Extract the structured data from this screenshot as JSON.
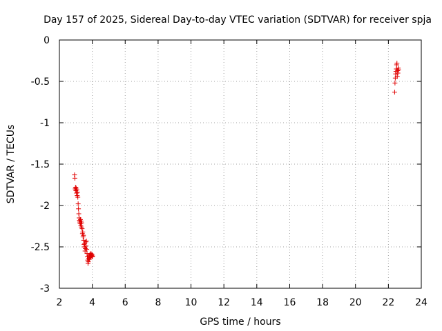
{
  "chart_data": {
    "type": "scatter",
    "title": "Day 157 of 2025, Sidereal Day-to-day VTEC variation (SDTVAR) for receiver spja",
    "xlabel": "GPS time / hours",
    "ylabel": "SDTVAR / TECUs",
    "xlim": [
      2,
      24
    ],
    "ylim": [
      -3,
      0
    ],
    "x_ticks": [
      2,
      4,
      6,
      8,
      10,
      12,
      14,
      16,
      18,
      20,
      22,
      24
    ],
    "y_ticks": [
      0,
      -0.5,
      -1,
      -1.5,
      -2,
      -2.5,
      -3
    ],
    "x_tick_labels": [
      "2",
      "4",
      "6",
      "8",
      "10",
      "12",
      "14",
      "16",
      "18",
      "20",
      "22",
      "24"
    ],
    "y_tick_labels": [
      "0",
      "-0.5",
      "-1",
      "-1.5",
      "-2",
      "-2.5",
      "-3"
    ],
    "grid": true,
    "marker": "+",
    "marker_color": "#e00000",
    "series": [
      {
        "name": "SDTVAR",
        "x": [
          2.92,
          2.94,
          2.96,
          2.98,
          3.0,
          3.02,
          3.04,
          3.06,
          3.08,
          3.1,
          3.12,
          3.14,
          3.16,
          3.18,
          3.2,
          3.22,
          3.24,
          3.26,
          3.28,
          3.3,
          3.32,
          3.34,
          3.36,
          3.38,
          3.4,
          3.42,
          3.44,
          3.46,
          3.48,
          3.5,
          3.52,
          3.54,
          3.56,
          3.58,
          3.6,
          3.62,
          3.64,
          3.66,
          3.68,
          3.7,
          3.72,
          3.74,
          3.76,
          3.78,
          3.8,
          3.82,
          3.84,
          3.86,
          3.88,
          3.9,
          3.92,
          3.94,
          3.96,
          3.98,
          4.0,
          4.02,
          22.38,
          22.4,
          22.42,
          22.44,
          22.46,
          22.48,
          22.5,
          22.52,
          22.54,
          22.56,
          22.58,
          22.6,
          22.62
        ],
        "y": [
          -1.63,
          -1.67,
          -1.8,
          -1.78,
          -1.82,
          -1.79,
          -1.85,
          -1.81,
          -1.88,
          -1.84,
          -1.9,
          -1.98,
          -2.04,
          -2.1,
          -2.15,
          -2.18,
          -2.2,
          -2.22,
          -2.17,
          -2.24,
          -2.19,
          -2.26,
          -2.21,
          -2.28,
          -2.34,
          -2.32,
          -2.38,
          -2.36,
          -2.42,
          -2.47,
          -2.5,
          -2.46,
          -2.55,
          -2.52,
          -2.44,
          -2.49,
          -2.43,
          -2.53,
          -2.58,
          -2.62,
          -2.66,
          -2.7,
          -2.68,
          -2.64,
          -2.61,
          -2.65,
          -2.6,
          -2.63,
          -2.59,
          -2.62,
          -2.58,
          -2.61,
          -2.6,
          -2.59,
          -2.62,
          -2.61,
          -0.63,
          -0.52,
          -0.46,
          -0.41,
          -0.38,
          -0.35,
          -0.3,
          -0.28,
          -0.44,
          -0.37,
          -0.4,
          -0.34,
          -0.36
        ]
      }
    ]
  }
}
